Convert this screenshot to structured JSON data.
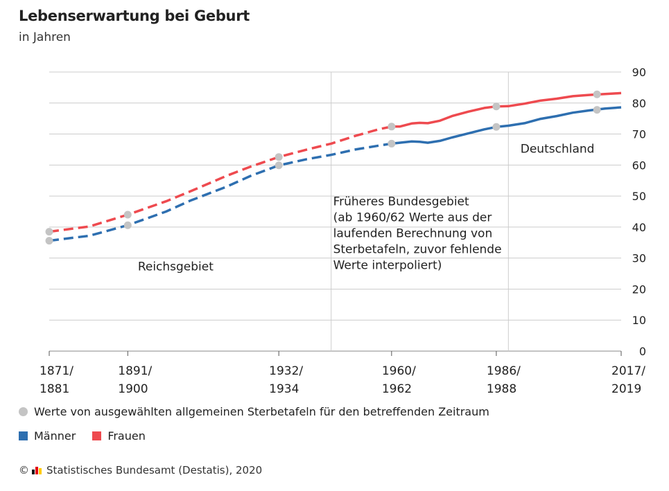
{
  "header": {
    "title": "Lebenserwartung bei Geburt",
    "subtitle": "in Jahren"
  },
  "legend": {
    "dot_label": "Werte von ausgewählten allgemeinen Sterbetafeln für den betreffenden Zeitraum",
    "men_label": "Männer",
    "women_label": "Frauen"
  },
  "source": {
    "copyright": "©",
    "text": "Statistisches Bundesamt (Destatis), 2020"
  },
  "colors": {
    "men": "#2e6fb0",
    "women": "#ee4a4f",
    "dot": "#c4c4c4",
    "grid": "#cccccc"
  },
  "chart_data": {
    "type": "line",
    "title": "Lebenserwartung bei Geburt",
    "subtitle": "in Jahren",
    "ylim": [
      0,
      90
    ],
    "yticks": [
      0,
      10,
      20,
      30,
      40,
      50,
      60,
      70,
      80,
      90
    ],
    "y_axis_position": "right",
    "xlim": [
      1876,
      2018
    ],
    "x_ticks": [
      {
        "year": 1876,
        "label": [
          "1871/",
          "1881"
        ]
      },
      {
        "year": 1895.5,
        "label": [
          "1891/",
          "1900"
        ]
      },
      {
        "year": 1933,
        "label": [
          "1932/",
          "1934"
        ]
      },
      {
        "year": 1961,
        "label": [
          "1960/",
          "1962"
        ]
      },
      {
        "year": 1987,
        "label": [
          "1986/",
          "1988"
        ]
      },
      {
        "year": 2018,
        "label": [
          "2017/",
          "2019"
        ]
      }
    ],
    "grid": true,
    "period_dividers": [
      1946,
      1990
    ],
    "region_labels": [
      {
        "text": [
          "Reichsgebiet"
        ],
        "year": 1898,
        "value": 26
      },
      {
        "text": [
          "Früheres Bundesgebiet",
          "(ab 1960/62 Werte aus der",
          "laufenden Berechnung von",
          "Sterbetafeln, zuvor fehlende",
          "Werte interpoliert)"
        ],
        "year": 1946.5,
        "value": 47
      },
      {
        "text": [
          "Deutschland"
        ],
        "year": 1993,
        "value": 64
      }
    ],
    "series": [
      {
        "name": "Frauen",
        "dashed_until": 1961,
        "points": [
          [
            1876,
            38.5
          ],
          [
            1886,
            40.2
          ],
          [
            1895.5,
            44.0
          ],
          [
            1905,
            48.3
          ],
          [
            1911,
            51.5
          ],
          [
            1920,
            56.5
          ],
          [
            1926,
            59.5
          ],
          [
            1933,
            62.6
          ],
          [
            1940,
            65.0
          ],
          [
            1946,
            66.9
          ],
          [
            1952,
            69.4
          ],
          [
            1958,
            71.6
          ],
          [
            1961,
            72.4
          ],
          [
            1963,
            72.4
          ],
          [
            1966,
            73.4
          ],
          [
            1968,
            73.6
          ],
          [
            1970,
            73.5
          ],
          [
            1973,
            74.3
          ],
          [
            1976,
            75.8
          ],
          [
            1980,
            77.2
          ],
          [
            1984,
            78.4
          ],
          [
            1987,
            78.9
          ],
          [
            1990,
            79.0
          ],
          [
            1994,
            79.8
          ],
          [
            1998,
            80.8
          ],
          [
            2002,
            81.4
          ],
          [
            2006,
            82.2
          ],
          [
            2010,
            82.6
          ],
          [
            2014,
            82.9
          ],
          [
            2018,
            83.2
          ]
        ],
        "marker_points": [
          [
            1876,
            38.5
          ],
          [
            1895.5,
            44.0
          ],
          [
            1933,
            62.6
          ],
          [
            1961,
            72.4
          ],
          [
            1987,
            78.9
          ],
          [
            2012,
            82.8
          ]
        ]
      },
      {
        "name": "Männer",
        "dashed_until": 1961,
        "points": [
          [
            1876,
            35.6
          ],
          [
            1886,
            37.2
          ],
          [
            1895.5,
            40.6
          ],
          [
            1905,
            45.0
          ],
          [
            1911,
            48.5
          ],
          [
            1920,
            53.0
          ],
          [
            1926,
            56.5
          ],
          [
            1933,
            59.9
          ],
          [
            1940,
            61.9
          ],
          [
            1946,
            63.3
          ],
          [
            1952,
            65.0
          ],
          [
            1958,
            66.3
          ],
          [
            1961,
            66.9
          ],
          [
            1963,
            67.2
          ],
          [
            1966,
            67.6
          ],
          [
            1968,
            67.5
          ],
          [
            1970,
            67.2
          ],
          [
            1973,
            67.8
          ],
          [
            1976,
            68.9
          ],
          [
            1980,
            70.2
          ],
          [
            1984,
            71.5
          ],
          [
            1987,
            72.3
          ],
          [
            1990,
            72.7
          ],
          [
            1994,
            73.5
          ],
          [
            1998,
            74.9
          ],
          [
            2002,
            75.8
          ],
          [
            2006,
            76.9
          ],
          [
            2010,
            77.6
          ],
          [
            2014,
            78.2
          ],
          [
            2018,
            78.6
          ]
        ],
        "marker_points": [
          [
            1876,
            35.6
          ],
          [
            1895.5,
            40.6
          ],
          [
            1933,
            59.9
          ],
          [
            1961,
            66.9
          ],
          [
            1987,
            72.3
          ],
          [
            2012,
            77.8
          ]
        ]
      }
    ]
  }
}
